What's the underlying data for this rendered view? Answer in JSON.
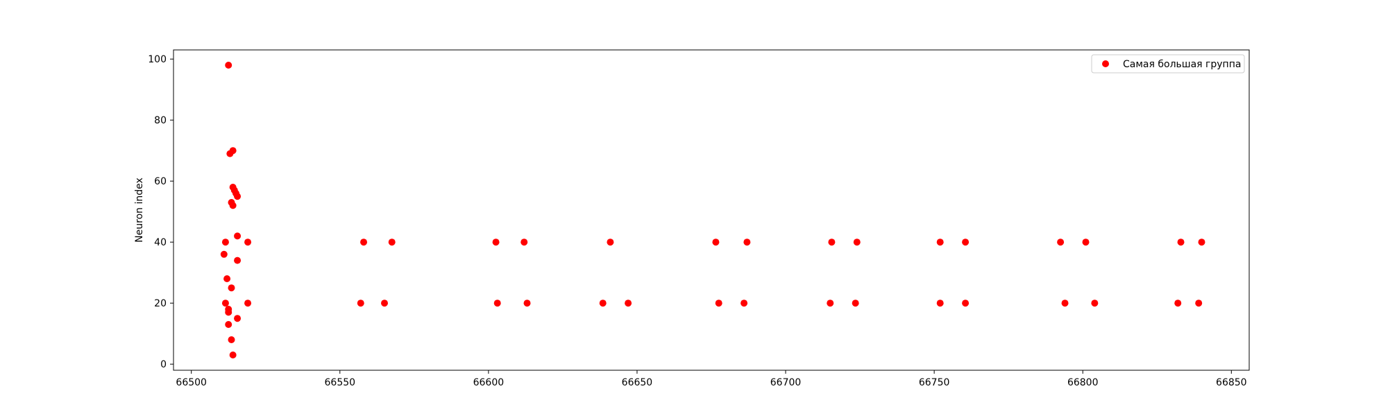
{
  "chart_data": {
    "type": "scatter",
    "title": "",
    "xlabel": "",
    "ylabel": "Neuron index",
    "xlim": [
      66494,
      66856
    ],
    "ylim": [
      -2,
      103
    ],
    "xticks": [
      66500,
      66550,
      66600,
      66650,
      66700,
      66750,
      66800,
      66850
    ],
    "yticks": [
      0,
      20,
      40,
      60,
      80,
      100
    ],
    "grid": false,
    "legend": {
      "position": "top-right"
    },
    "series": [
      {
        "name": "Самая большая группа",
        "color": "#ff0000",
        "points": [
          [
            66511,
            36
          ],
          [
            66511.5,
            40
          ],
          [
            66511.5,
            20
          ],
          [
            66512,
            28
          ],
          [
            66512.5,
            13
          ],
          [
            66512.5,
            18
          ],
          [
            66512.5,
            17
          ],
          [
            66512.5,
            98
          ],
          [
            66513,
            69
          ],
          [
            66513.5,
            25
          ],
          [
            66513.5,
            8
          ],
          [
            66513.5,
            53
          ],
          [
            66514,
            3
          ],
          [
            66514,
            70
          ],
          [
            66514,
            58
          ],
          [
            66514,
            52
          ],
          [
            66514.5,
            57
          ],
          [
            66515,
            56
          ],
          [
            66515.5,
            55
          ],
          [
            66515.5,
            15
          ],
          [
            66515.5,
            42
          ],
          [
            66515.5,
            34
          ],
          [
            66519,
            40
          ],
          [
            66519,
            20
          ],
          [
            66557,
            20
          ],
          [
            66558,
            40
          ],
          [
            66565,
            20
          ],
          [
            66567.5,
            40
          ],
          [
            66602.5,
            40
          ],
          [
            66603,
            20
          ],
          [
            66612,
            40
          ],
          [
            66613,
            20
          ],
          [
            66638.5,
            20
          ],
          [
            66641,
            40
          ],
          [
            66647,
            20
          ],
          [
            66676.5,
            40
          ],
          [
            66677.5,
            20
          ],
          [
            66686,
            20
          ],
          [
            66687,
            40
          ],
          [
            66715,
            20
          ],
          [
            66715.5,
            40
          ],
          [
            66723.5,
            20
          ],
          [
            66724,
            40
          ],
          [
            66752,
            20
          ],
          [
            66752,
            40
          ],
          [
            66760.5,
            40
          ],
          [
            66760.5,
            20
          ],
          [
            66792.5,
            40
          ],
          [
            66794,
            20
          ],
          [
            66801,
            40
          ],
          [
            66804,
            20
          ],
          [
            66832,
            20
          ],
          [
            66833,
            40
          ],
          [
            66839,
            20
          ],
          [
            66840,
            40
          ]
        ]
      }
    ]
  }
}
